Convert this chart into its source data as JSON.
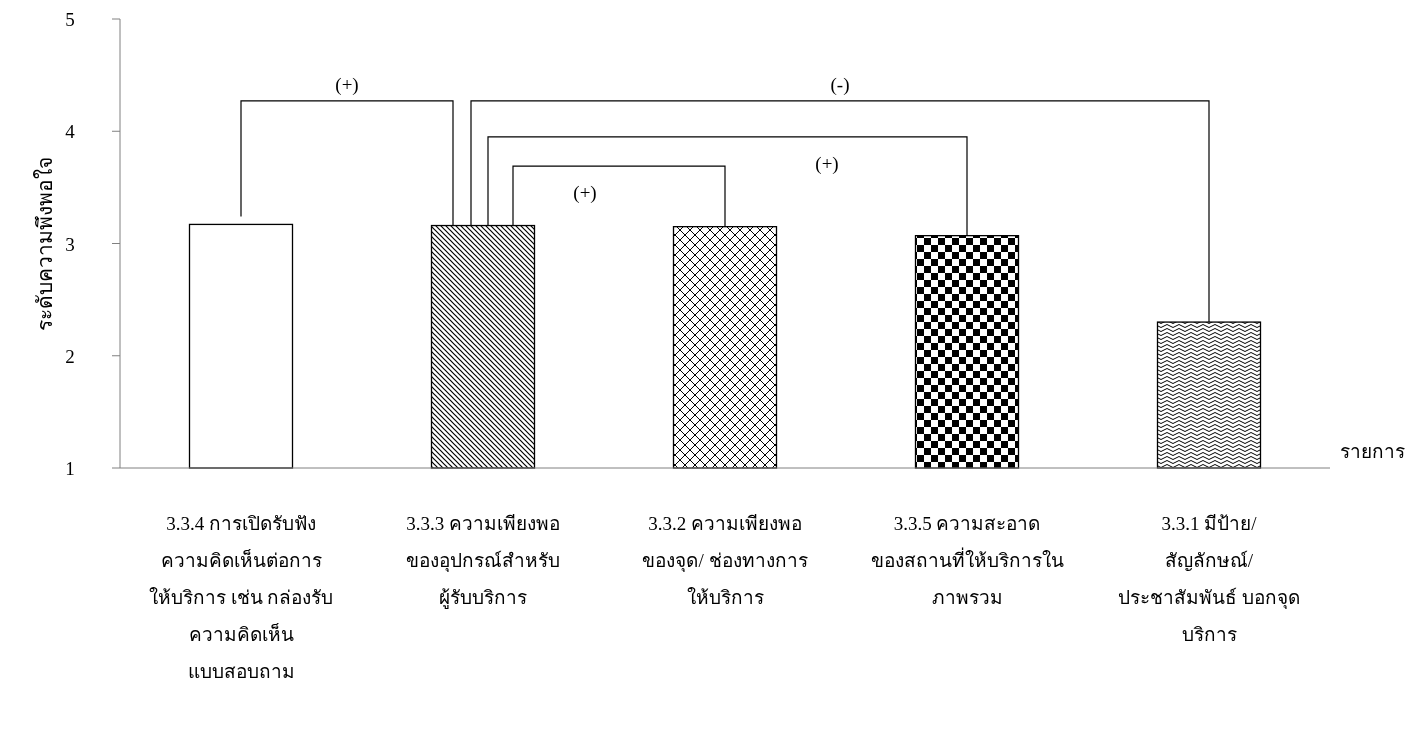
{
  "chart_data": {
    "type": "bar",
    "ylabel": "ระดับความพึงพอใจ",
    "xlabel": "รายการ",
    "categories": [
      "3.3.4 การเปิดรับฟัง\nความคิดเห็นต่อการ\nให้บริการ เช่น กล่องรับ\nความคิดเห็น\nแบบสอบถาม",
      "3.3.3 ความเพียงพอ\nของอุปกรณ์สำหรับ\nผู้รับบริการ",
      "3.3.2  ความเพียงพอ\nของจุด/ ช่องทางการ\nให้บริการ",
      "3.3.5 ความสะอาด\nของสถานที่ให้บริการใน\nภาพรวม",
      "3.3.1 มีป้าย/\nสัญลักษณ์/\nประชาสัมพันธ์ บอกจุด\nบริการ"
    ],
    "values": [
      3.17,
      3.16,
      3.15,
      3.07,
      2.3
    ],
    "color": "#000000",
    "ylim": [
      1,
      5
    ],
    "yticks": [
      1,
      2,
      3,
      4,
      5
    ],
    "annotations": [
      "(+)",
      "(-)",
      "(+)",
      "(+)"
    ]
  }
}
